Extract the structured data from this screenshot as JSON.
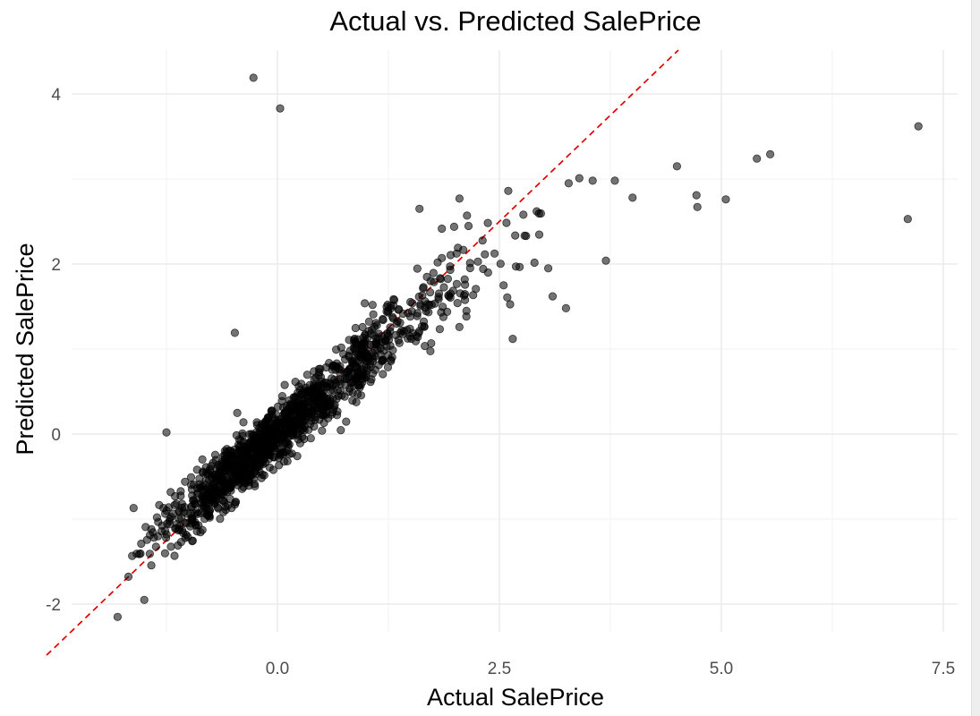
{
  "chart_data": {
    "type": "scatter",
    "title": "Actual vs. Predicted SalePrice",
    "xlabel": "Actual SalePrice",
    "ylabel": "Predicted SalePrice",
    "xlim": [
      -2.6,
      7.7
    ],
    "ylim": [
      -2.3,
      4.5
    ],
    "x_ticks": [
      0.0,
      2.5,
      5.0,
      7.5
    ],
    "x_tick_labels": [
      "0.0",
      "2.5",
      "5.0",
      "7.5"
    ],
    "y_ticks": [
      -2,
      0,
      2,
      4
    ],
    "y_tick_labels": [
      "-2",
      "0",
      "2",
      "4"
    ],
    "grid": true,
    "legend": "none",
    "reference_line": {
      "slope": 1,
      "intercept": 0,
      "color": "#e00000",
      "style": "dashed"
    },
    "point_color": "#000000",
    "notable_points": [
      {
        "x": -0.27,
        "y": 4.19
      },
      {
        "x": 0.03,
        "y": 3.83
      },
      {
        "x": 7.22,
        "y": 3.62
      },
      {
        "x": 7.1,
        "y": 2.53
      },
      {
        "x": 5.55,
        "y": 3.29
      },
      {
        "x": 5.4,
        "y": 3.24
      },
      {
        "x": 5.05,
        "y": 2.76
      },
      {
        "x": 4.72,
        "y": 2.81
      },
      {
        "x": 4.73,
        "y": 2.67
      },
      {
        "x": 4.5,
        "y": 3.15
      },
      {
        "x": 4.0,
        "y": 2.78
      },
      {
        "x": 3.8,
        "y": 2.98
      },
      {
        "x": 3.7,
        "y": 2.04
      },
      {
        "x": 3.55,
        "y": 2.98
      },
      {
        "x": 3.4,
        "y": 3.01
      },
      {
        "x": 3.28,
        "y": 2.95
      },
      {
        "x": 3.25,
        "y": 1.48
      },
      {
        "x": 3.1,
        "y": 1.62
      },
      {
        "x": 3.05,
        "y": 1.95
      },
      {
        "x": 2.92,
        "y": 2.62
      },
      {
        "x": 2.77,
        "y": 2.58
      },
      {
        "x": 2.6,
        "y": 2.86
      },
      {
        "x": 2.65,
        "y": 1.12
      },
      {
        "x": 2.05,
        "y": 2.77
      },
      {
        "x": 1.6,
        "y": 2.65
      },
      {
        "x": -1.25,
        "y": 0.02
      },
      {
        "x": -0.48,
        "y": 1.19
      },
      {
        "x": -1.8,
        "y": -2.15
      },
      {
        "x": -1.5,
        "y": -1.95
      },
      {
        "x": -1.62,
        "y": -0.87
      }
    ],
    "main_cloud": {
      "x_range": [
        -1.9,
        3.0
      ],
      "relationship": "approximately y = 0.88x",
      "approx_count": 1300
    }
  }
}
